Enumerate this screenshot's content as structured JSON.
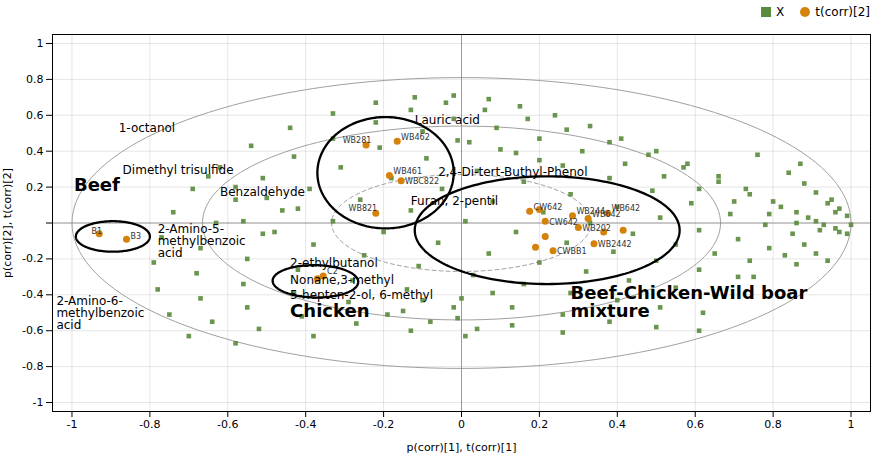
{
  "chart_data": {
    "type": "scatter",
    "xlabel": "p(corr)[1], t(corr)[1]",
    "ylabel": "p(corr)[2], t(corr)[2]",
    "xlim": [
      -1.05,
      1.05
    ],
    "ylim": [
      -1.05,
      1.05
    ],
    "xticks": [
      -1,
      -0.8,
      -0.6,
      -0.4,
      -0.2,
      0,
      0.2,
      0.4,
      0.6,
      0.8,
      1
    ],
    "yticks": [
      -1,
      -0.8,
      -0.6,
      -0.4,
      -0.2,
      {
        "value": 0,
        "label": null
      },
      0.2,
      0.4,
      0.6,
      0.8,
      1
    ],
    "grid": true,
    "legend": "upper right",
    "series": [
      {
        "name": "X",
        "color": "#5a8a3c",
        "marker": "square",
        "values": [
          [
            -0.02,
            0.71
          ],
          [
            0.07,
            0.69
          ],
          [
            0.15,
            0.65
          ],
          [
            0.24,
            0.6
          ],
          [
            0.33,
            0.54
          ],
          [
            0.41,
            0.47
          ],
          [
            0.5,
            0.4
          ],
          [
            0.58,
            0.33
          ],
          [
            0.66,
            0.26
          ],
          [
            0.73,
            0.19
          ],
          [
            0.8,
            0.12
          ],
          [
            0.86,
            0.06
          ],
          [
            0.91,
            0.01
          ],
          [
            0.96,
            -0.03
          ],
          [
            0.99,
            -0.06
          ],
          [
            1.0,
            -0.01
          ],
          [
            0.99,
            0.04
          ],
          [
            0.97,
            0.08
          ],
          [
            0.95,
            0.13
          ],
          [
            -0.12,
            0.7
          ],
          [
            -0.04,
            0.67
          ],
          [
            0.06,
            0.63
          ],
          [
            0.17,
            0.58
          ],
          [
            0.27,
            0.52
          ],
          [
            0.38,
            0.45
          ],
          [
            0.48,
            0.38
          ],
          [
            0.57,
            0.31
          ],
          [
            0.66,
            0.23
          ],
          [
            0.74,
            0.16
          ],
          [
            0.82,
            0.09
          ],
          [
            0.89,
            0.03
          ],
          [
            0.93,
            -0.01
          ],
          [
            0.97,
            -0.05
          ],
          [
            -0.22,
            0.67
          ],
          [
            -0.13,
            0.63
          ],
          [
            -0.02,
            0.58
          ],
          [
            0.09,
            0.53
          ],
          [
            0.2,
            0.47
          ],
          [
            0.31,
            0.4
          ],
          [
            0.42,
            0.33
          ],
          [
            0.52,
            0.26
          ],
          [
            0.61,
            0.19
          ],
          [
            0.7,
            0.12
          ],
          [
            0.79,
            0.05
          ],
          [
            0.86,
            0.0
          ],
          [
            0.92,
            -0.04
          ],
          [
            -0.33,
            0.61
          ],
          [
            -0.22,
            0.56
          ],
          [
            -0.1,
            0.51
          ],
          [
            0.02,
            0.45
          ],
          [
            0.14,
            0.39
          ],
          [
            0.26,
            0.32
          ],
          [
            0.38,
            0.25
          ],
          [
            0.49,
            0.18
          ],
          [
            0.59,
            0.11
          ],
          [
            0.69,
            0.05
          ],
          [
            0.78,
            -0.01
          ],
          [
            0.85,
            -0.06
          ],
          [
            -0.44,
            0.53
          ],
          [
            -0.33,
            0.47
          ],
          [
            -0.21,
            0.42
          ],
          [
            -0.09,
            0.36
          ],
          [
            0.04,
            0.29
          ],
          [
            0.16,
            0.23
          ],
          [
            0.28,
            0.16
          ],
          [
            0.4,
            0.09
          ],
          [
            0.51,
            0.03
          ],
          [
            0.61,
            -0.04
          ],
          [
            0.71,
            -0.09
          ],
          [
            0.79,
            -0.14
          ],
          [
            -0.54,
            0.43
          ],
          [
            -0.43,
            0.37
          ],
          [
            -0.31,
            0.31
          ],
          [
            -0.18,
            0.25
          ],
          [
            -0.05,
            0.19
          ],
          [
            0.08,
            0.12
          ],
          [
            0.21,
            0.06
          ],
          [
            0.33,
            0.0
          ],
          [
            0.44,
            -0.06
          ],
          [
            0.55,
            -0.12
          ],
          [
            0.65,
            -0.17
          ],
          [
            0.74,
            -0.21
          ],
          [
            -0.62,
            0.31
          ],
          [
            -0.51,
            0.25
          ],
          [
            -0.39,
            0.19
          ],
          [
            -0.26,
            0.13
          ],
          [
            -0.13,
            0.07
          ],
          [
            0.01,
            0.01
          ],
          [
            0.14,
            -0.05
          ],
          [
            0.27,
            -0.11
          ],
          [
            0.39,
            -0.16
          ],
          [
            0.5,
            -0.21
          ],
          [
            0.61,
            -0.26
          ],
          [
            0.71,
            -0.3
          ],
          [
            -0.69,
            0.19
          ],
          [
            -0.58,
            0.13
          ],
          [
            -0.46,
            0.07
          ],
          [
            -0.33,
            0.01
          ],
          [
            -0.2,
            -0.05
          ],
          [
            -0.06,
            -0.11
          ],
          [
            0.07,
            -0.17
          ],
          [
            0.2,
            -0.22
          ],
          [
            0.32,
            -0.27
          ],
          [
            0.43,
            -0.32
          ],
          [
            0.55,
            -0.36
          ],
          [
            0.65,
            -0.4
          ],
          [
            -0.74,
            0.06
          ],
          [
            -0.63,
            0.0
          ],
          [
            -0.51,
            -0.06
          ],
          [
            -0.38,
            -0.12
          ],
          [
            -0.25,
            -0.18
          ],
          [
            -0.11,
            -0.24
          ],
          [
            0.03,
            -0.29
          ],
          [
            0.16,
            -0.34
          ],
          [
            0.28,
            -0.39
          ],
          [
            0.4,
            -0.43
          ],
          [
            0.51,
            -0.47
          ],
          [
            0.62,
            -0.5
          ],
          [
            -0.77,
            -0.08
          ],
          [
            -0.67,
            -0.14
          ],
          [
            -0.55,
            -0.2
          ],
          [
            -0.42,
            -0.26
          ],
          [
            -0.28,
            -0.32
          ],
          [
            -0.14,
            -0.37
          ],
          [
            0.0,
            -0.42
          ],
          [
            0.13,
            -0.47
          ],
          [
            0.26,
            -0.51
          ],
          [
            0.38,
            -0.55
          ],
          [
            0.5,
            -0.58
          ],
          [
            0.61,
            -0.6
          ],
          [
            -0.79,
            -0.22
          ],
          [
            -0.68,
            -0.28
          ],
          [
            -0.56,
            -0.34
          ],
          [
            -0.43,
            -0.39
          ],
          [
            -0.29,
            -0.44
          ],
          [
            -0.15,
            -0.49
          ],
          [
            -0.01,
            -0.53
          ],
          [
            0.13,
            -0.57
          ],
          [
            0.26,
            -0.61
          ],
          [
            -0.78,
            -0.37
          ],
          [
            -0.67,
            -0.42
          ],
          [
            -0.55,
            -0.47
          ],
          [
            -0.41,
            -0.52
          ],
          [
            -0.27,
            -0.56
          ],
          [
            -0.13,
            -0.6
          ],
          [
            0.01,
            -0.63
          ],
          [
            -0.75,
            -0.51
          ],
          [
            -0.64,
            -0.55
          ],
          [
            -0.52,
            -0.59
          ],
          [
            -0.38,
            -0.63
          ],
          [
            -0.7,
            -0.63
          ],
          [
            -0.58,
            -0.67
          ],
          [
            0.88,
            0.22
          ],
          [
            0.91,
            0.17
          ],
          [
            0.94,
            0.11
          ],
          [
            0.96,
            0.06
          ],
          [
            0.88,
            -0.12
          ],
          [
            0.91,
            -0.17
          ],
          [
            0.94,
            -0.21
          ],
          [
            0.84,
            0.28
          ],
          [
            0.87,
            0.33
          ],
          [
            0.83,
            -0.18
          ],
          [
            0.86,
            -0.23
          ],
          [
            0.76,
            0.38
          ],
          [
            0.75,
            -0.3
          ],
          [
            -0.08,
            -0.55
          ],
          [
            -0.19,
            -0.51
          ],
          [
            0.04,
            -0.59
          ],
          [
            -0.42,
            0.08
          ],
          [
            -0.5,
            0.14
          ],
          [
            -0.58,
            0.2
          ],
          [
            -0.65,
            0.26
          ],
          [
            -0.48,
            -0.05
          ],
          [
            -0.56,
            0.01
          ],
          [
            0.1,
            0.41
          ],
          [
            0.2,
            0.35
          ],
          [
            -0.01,
            0.46
          ],
          [
            -0.1,
            -0.43
          ],
          [
            -0.02,
            -0.47
          ],
          [
            0.08,
            -0.39
          ]
        ]
      },
      {
        "name": "t(corr)[2]",
        "color": "#d4820a",
        "marker": "circle",
        "values": [
          [
            -0.93,
            -0.06
          ],
          [
            -0.86,
            -0.09
          ],
          [
            -0.245,
            0.435
          ],
          [
            -0.165,
            0.455
          ],
          [
            -0.185,
            0.265
          ],
          [
            -0.155,
            0.235
          ],
          [
            -0.22,
            0.055
          ],
          [
            -0.355,
            -0.295
          ],
          [
            -0.37,
            -0.31
          ],
          [
            0.175,
            0.065
          ],
          [
            0.215,
            0.01
          ],
          [
            0.2,
            0.075
          ],
          [
            0.215,
            -0.075
          ],
          [
            0.285,
            0.04
          ],
          [
            0.3,
            -0.025
          ],
          [
            0.325,
            0.025
          ],
          [
            0.34,
            -0.115
          ],
          [
            0.365,
            -0.05
          ],
          [
            0.375,
            0.055
          ],
          [
            0.415,
            -0.04
          ],
          [
            0.19,
            -0.135
          ],
          [
            0.235,
            -0.155
          ]
        ]
      }
    ],
    "point_labels": [
      {
        "text": "B1",
        "x": -0.93,
        "y": -0.06,
        "dx": -0.02,
        "dy": 0.0
      },
      {
        "text": "B3",
        "x": -0.86,
        "y": -0.09,
        "dx": 0.01,
        "dy": 0.0
      },
      {
        "text": "WB281",
        "x": -0.245,
        "y": 0.435,
        "dx": -0.06,
        "dy": 0.01
      },
      {
        "text": "WB462",
        "x": -0.165,
        "y": 0.455,
        "dx": 0.01,
        "dy": 0.01
      },
      {
        "text": "WB461",
        "x": -0.185,
        "y": 0.265,
        "dx": 0.01,
        "dy": 0.01
      },
      {
        "text": "WBC822",
        "x": -0.155,
        "y": 0.235,
        "dx": 0.01,
        "dy": -0.02
      },
      {
        "text": "WB821",
        "x": -0.22,
        "y": 0.055,
        "dx": -0.07,
        "dy": 0.01
      },
      {
        "text": "C2",
        "x": -0.355,
        "y": -0.295,
        "dx": 0.01,
        "dy": 0.01
      },
      {
        "text": "CW642",
        "x": 0.175,
        "y": 0.065,
        "dx": 0.01,
        "dy": 0.01
      },
      {
        "text": "CW642",
        "x": 0.215,
        "y": 0.01,
        "dx": 0.01,
        "dy": -0.02
      },
      {
        "text": "WB244",
        "x": 0.285,
        "y": 0.04,
        "dx": 0.01,
        "dy": 0.01
      },
      {
        "text": "WB642",
        "x": 0.325,
        "y": 0.025,
        "dx": 0.01,
        "dy": 0.01
      },
      {
        "text": "WB642",
        "x": 0.375,
        "y": 0.055,
        "dx": 0.01,
        "dy": 0.01
      },
      {
        "text": "WB202",
        "x": 0.3,
        "y": -0.025,
        "dx": 0.01,
        "dy": -0.02
      },
      {
        "text": "WB2442",
        "x": 0.34,
        "y": -0.115,
        "dx": 0.01,
        "dy": -0.02
      },
      {
        "text": "CWBB1",
        "x": 0.235,
        "y": -0.155,
        "dx": 0.01,
        "dy": -0.02
      }
    ],
    "annotations": [
      {
        "text": "1-octanol",
        "x": -0.88,
        "y": 0.53,
        "bold": false
      },
      {
        "text": "Dimethyl trisulfide",
        "x": -0.87,
        "y": 0.295,
        "bold": false
      },
      {
        "text": "Benzaldehyde",
        "x": -0.62,
        "y": 0.17,
        "bold": false
      },
      {
        "text": "Beef",
        "x": -0.995,
        "y": 0.21,
        "bold": true
      },
      {
        "text": "2-Amino-5-\nmethylbenzoic\nacid",
        "x": -0.78,
        "y": -0.1,
        "bold": false
      },
      {
        "text": "2-Amino-6-\nmethylbenzoic\nacid",
        "x": -1.04,
        "y": -0.5,
        "bold": false
      },
      {
        "text": "Lauric acid",
        "x": -0.12,
        "y": 0.575,
        "bold": false
      },
      {
        "text": "2,4-Di-tert-Buthyl-Phenol",
        "x": -0.06,
        "y": 0.285,
        "bold": false
      },
      {
        "text": "Furan, 2-pentil",
        "x": -0.13,
        "y": 0.12,
        "bold": false
      },
      {
        "text": "2-ethylbutanol",
        "x": -0.44,
        "y": -0.225,
        "bold": false
      },
      {
        "text": "Nonane,3-methyl",
        "x": -0.44,
        "y": -0.32,
        "bold": false
      },
      {
        "text": "5-hepten-2-ol, 6-methyl",
        "x": -0.44,
        "y": -0.4,
        "bold": false
      },
      {
        "text": "Chicken",
        "x": -0.44,
        "y": -0.49,
        "bold": true
      },
      {
        "text": "Beef-Chicken-Wild boar\nmixture",
        "x": 0.28,
        "y": -0.44,
        "bold": true
      }
    ],
    "group_ellipses": [
      {
        "cx": -0.895,
        "cy": -0.075,
        "w": 0.19,
        "h": 0.17,
        "angle": 0
      },
      {
        "cx": -0.375,
        "cy": -0.325,
        "w": 0.22,
        "h": 0.18,
        "angle": -5
      },
      {
        "cx": -0.195,
        "cy": 0.28,
        "w": 0.35,
        "h": 0.62,
        "angle": 0
      },
      {
        "cx": 0.22,
        "cy": -0.04,
        "w": 0.68,
        "h": 0.6,
        "angle": 0
      }
    ],
    "reference_ellipses": [
      {
        "cx": 0,
        "cy": 0,
        "w": 1.33,
        "h": 1.08,
        "angle": 0,
        "line_style": "solid"
      },
      {
        "cx": 0,
        "cy": 0,
        "w": 0.667,
        "h": 0.54,
        "angle": 0,
        "line_style": "dashed"
      },
      {
        "cx": 0.0,
        "cy": 0.0,
        "w": 2.0,
        "h": 1.62,
        "angle": 0,
        "line_style": "solid"
      }
    ],
    "reference_lines": {
      "x": 0,
      "y": 0
    }
  }
}
